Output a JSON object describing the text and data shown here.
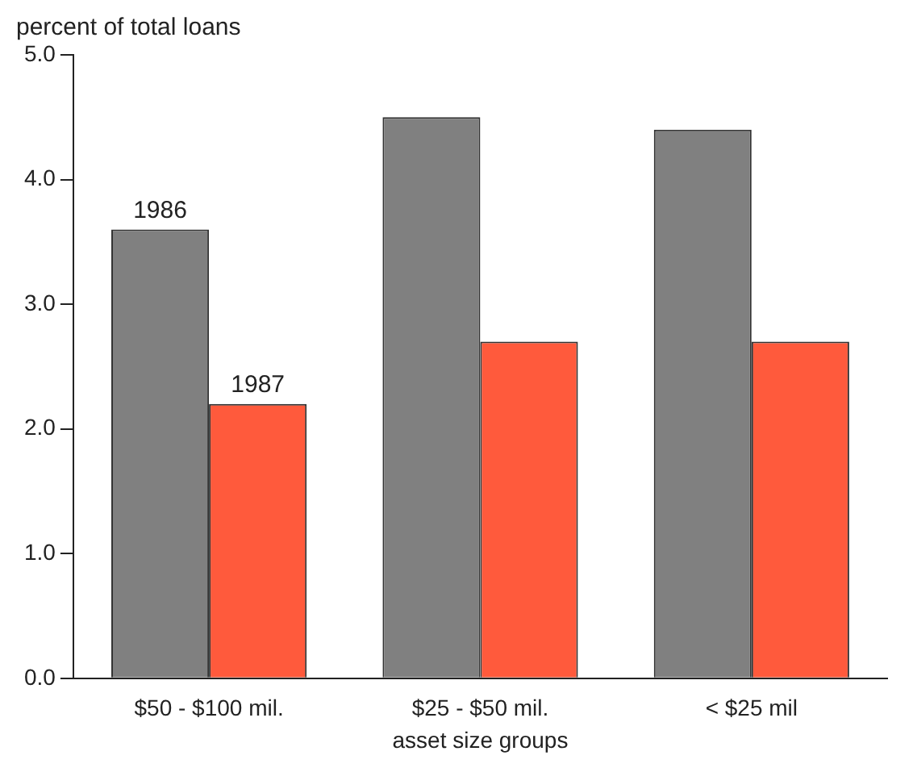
{
  "chart_data": {
    "type": "bar",
    "ylabel": "percent of total loans",
    "xlabel": "asset size groups",
    "categories": [
      "$50 - $100 mil.",
      "$25 - $50 mil.",
      "< $25 mil"
    ],
    "series": [
      {
        "name": "1986",
        "color": "#808080",
        "values": [
          3.6,
          4.5,
          4.4
        ]
      },
      {
        "name": "1987",
        "color": "#ff5a3c",
        "values": [
          2.2,
          2.7,
          2.7
        ]
      }
    ],
    "ylim": [
      0,
      5
    ],
    "yticks": [
      {
        "value": 0,
        "label": "0.0"
      },
      {
        "value": 1,
        "label": "1.0"
      },
      {
        "value": 2,
        "label": "2.0"
      },
      {
        "value": 3,
        "label": "3.0"
      },
      {
        "value": 4,
        "label": "4.0"
      },
      {
        "value": 5,
        "label": "5.0"
      }
    ],
    "grid": false,
    "legend": false
  }
}
